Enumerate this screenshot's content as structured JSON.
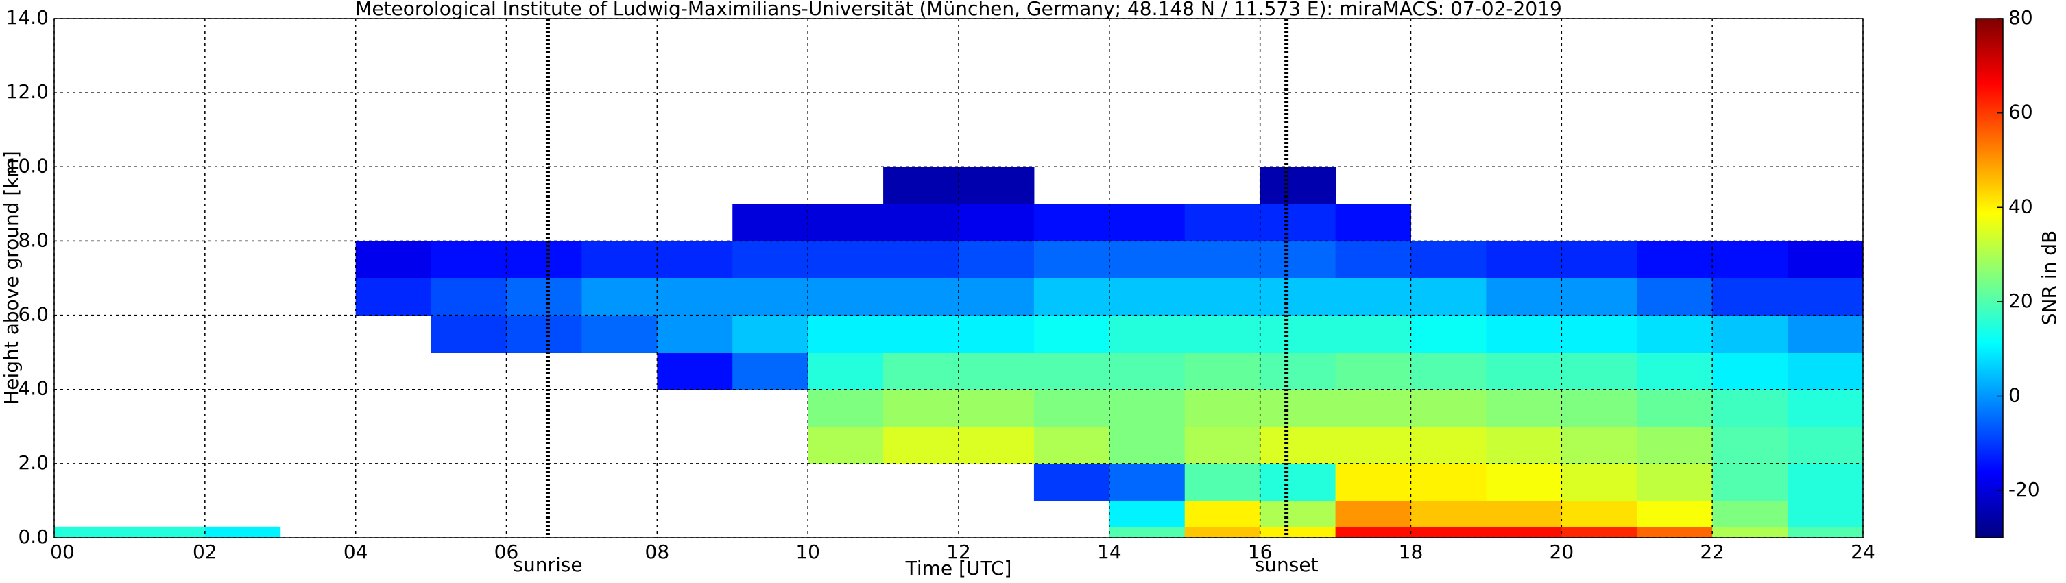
{
  "chart_data": {
    "type": "heatmap",
    "title": "Meteorological Institute of Ludwig-Maximilians-Universität (München, Germany; 48.148 N / 11.573 E):    miraMACS: 07-02-2019",
    "xlabel": "Time [UTC]",
    "ylabel": "Height above ground [km]",
    "colorbar_label": "SNR in dB",
    "x": [
      0,
      1,
      2,
      3,
      4,
      5,
      6,
      7,
      8,
      9,
      10,
      11,
      12,
      13,
      14,
      15,
      16,
      17,
      18,
      19,
      20,
      21,
      22,
      23,
      24
    ],
    "y": [
      0,
      0.3,
      1,
      2,
      3,
      4,
      5,
      6,
      7,
      8,
      9,
      10
    ],
    "z": [
      [
        15,
        15,
        10,
        null,
        null,
        null,
        null,
        null,
        null,
        null,
        null,
        null,
        null,
        null,
        20,
        45,
        40,
        65,
        65,
        65,
        62,
        55,
        30,
        20
      ],
      [
        null,
        null,
        null,
        null,
        null,
        null,
        null,
        null,
        null,
        null,
        null,
        null,
        null,
        null,
        10,
        40,
        30,
        50,
        45,
        45,
        42,
        38,
        25,
        15
      ],
      [
        null,
        null,
        null,
        null,
        null,
        null,
        null,
        null,
        null,
        null,
        null,
        null,
        null,
        -10,
        -5,
        20,
        15,
        40,
        40,
        38,
        35,
        32,
        20,
        15
      ],
      [
        null,
        null,
        null,
        null,
        null,
        null,
        null,
        null,
        null,
        null,
        30,
        35,
        35,
        30,
        25,
        30,
        35,
        35,
        35,
        33,
        30,
        28,
        20,
        18
      ],
      [
        null,
        null,
        null,
        null,
        null,
        null,
        null,
        null,
        null,
        null,
        25,
        28,
        28,
        25,
        25,
        28,
        28,
        28,
        28,
        26,
        25,
        22,
        18,
        15
      ],
      [
        null,
        null,
        null,
        null,
        null,
        null,
        null,
        null,
        -15,
        -5,
        15,
        20,
        20,
        20,
        20,
        22,
        20,
        22,
        20,
        18,
        18,
        15,
        10,
        8
      ],
      [
        null,
        null,
        null,
        null,
        null,
        -10,
        -8,
        -5,
        0,
        5,
        10,
        10,
        10,
        12,
        15,
        15,
        15,
        15,
        12,
        10,
        10,
        8,
        5,
        0
      ],
      [
        null,
        null,
        null,
        null,
        -12,
        -8,
        -5,
        0,
        0,
        0,
        0,
        0,
        0,
        5,
        5,
        5,
        5,
        5,
        5,
        0,
        0,
        -5,
        -10,
        -10
      ],
      [
        null,
        null,
        null,
        null,
        -18,
        -15,
        -15,
        -12,
        -12,
        -10,
        -10,
        -10,
        -8,
        -5,
        -5,
        -5,
        -5,
        -8,
        -10,
        -12,
        -12,
        -15,
        -15,
        -18
      ],
      [
        null,
        null,
        null,
        null,
        null,
        null,
        null,
        null,
        null,
        -20,
        -20,
        -20,
        -18,
        -15,
        -15,
        -12,
        -12,
        -15,
        null,
        null,
        null,
        null,
        null,
        null
      ],
      [
        null,
        null,
        null,
        null,
        null,
        null,
        null,
        null,
        null,
        null,
        null,
        -25,
        -25,
        null,
        null,
        null,
        -25,
        null,
        null,
        null,
        null,
        null,
        null,
        null
      ]
    ],
    "xlim": [
      0,
      24
    ],
    "ylim": [
      0,
      14
    ],
    "xticks": [
      {
        "value": 0,
        "label": "00"
      },
      {
        "value": 2,
        "label": "02"
      },
      {
        "value": 4,
        "label": "04"
      },
      {
        "value": 6,
        "label": "06"
      },
      {
        "value": 8,
        "label": "08"
      },
      10,
      12,
      14,
      16,
      18,
      20,
      22,
      24
    ],
    "yticks": [
      {
        "value": 0,
        "label": "0.0"
      },
      {
        "value": 2,
        "label": "2.0"
      },
      {
        "value": 4,
        "label": "4.0"
      },
      {
        "value": 6,
        "label": "6.0"
      },
      {
        "value": 8,
        "label": "8.0"
      },
      {
        "value": 10,
        "label": "10.0"
      },
      {
        "value": 12,
        "label": "12.0"
      },
      {
        "value": 14,
        "label": "14.0"
      }
    ],
    "zlim": [
      -30,
      80
    ],
    "zticks": [
      -20,
      0,
      20,
      40,
      60,
      80
    ],
    "colors": [
      "#00007f",
      "#0000ff",
      "#007fff",
      "#00ffff",
      "#7fff7f",
      "#ffff00",
      "#ff7f00",
      "#ff0000",
      "#7f0000"
    ],
    "grid": true,
    "annotations": [
      {
        "x": 6.55,
        "label": "sunrise"
      },
      {
        "x": 16.35,
        "label": "sunset"
      }
    ]
  }
}
